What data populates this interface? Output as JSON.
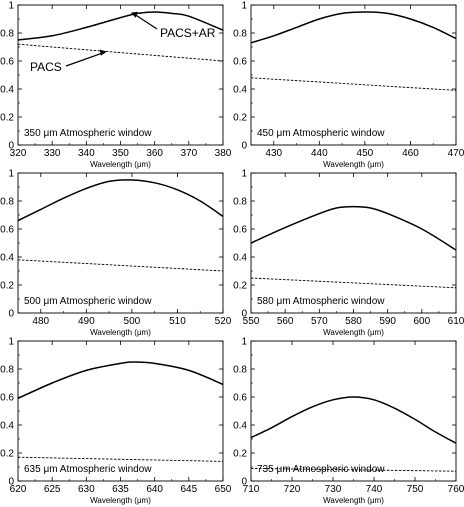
{
  "chart_data": [
    {
      "type": "line",
      "annotation": "350 μm Atmospheric window",
      "xlabel": "Wavelength (μm)",
      "ylabel": "",
      "xlim": [
        320,
        380
      ],
      "ylim": [
        0,
        1
      ],
      "x_ticks": [
        320,
        330,
        340,
        350,
        360,
        370,
        380
      ],
      "y_ticks": [
        0,
        0.2,
        0.4,
        0.6,
        0.8,
        1
      ],
      "series": [
        {
          "name": "PACS+AR",
          "style": "solid",
          "x": [
            320,
            330,
            340,
            350,
            355,
            360,
            365,
            370,
            380
          ],
          "y": [
            0.75,
            0.78,
            0.84,
            0.91,
            0.94,
            0.95,
            0.94,
            0.92,
            0.82
          ]
        },
        {
          "name": "PACS",
          "style": "dashed",
          "x": [
            320,
            380
          ],
          "y": [
            0.72,
            0.6
          ]
        }
      ],
      "labels": [
        "PACS+AR",
        "PACS"
      ]
    },
    {
      "type": "line",
      "annotation": "450 μm Atmospheric window",
      "xlabel": "Wavelength (μm)",
      "ylabel": "",
      "xlim": [
        425,
        470
      ],
      "ylim": [
        0,
        1
      ],
      "x_ticks": [
        430,
        440,
        450,
        460,
        470
      ],
      "y_ticks": [
        0,
        0.2,
        0.4,
        0.6,
        0.8,
        1
      ],
      "series": [
        {
          "style": "solid",
          "x": [
            425,
            430,
            435,
            440,
            445,
            450,
            455,
            460,
            465,
            470
          ],
          "y": [
            0.73,
            0.78,
            0.84,
            0.9,
            0.94,
            0.95,
            0.94,
            0.9,
            0.84,
            0.76
          ]
        },
        {
          "style": "dashed",
          "x": [
            425,
            470
          ],
          "y": [
            0.48,
            0.39
          ]
        }
      ]
    },
    {
      "type": "line",
      "annotation": "500 μm Atmospheric window",
      "xlabel": "Wavelength (μm)",
      "ylabel": "",
      "xlim": [
        475,
        520
      ],
      "ylim": [
        0,
        1
      ],
      "x_ticks": [
        480,
        490,
        500,
        510,
        520
      ],
      "y_ticks": [
        0,
        0.2,
        0.4,
        0.6,
        0.8,
        1
      ],
      "series": [
        {
          "style": "solid",
          "x": [
            475,
            480,
            485,
            490,
            495,
            500,
            505,
            510,
            515,
            520
          ],
          "y": [
            0.66,
            0.74,
            0.82,
            0.89,
            0.94,
            0.95,
            0.93,
            0.88,
            0.8,
            0.69
          ]
        },
        {
          "style": "dashed",
          "x": [
            475,
            520
          ],
          "y": [
            0.38,
            0.3
          ]
        }
      ]
    },
    {
      "type": "line",
      "annotation": "580 μm Atmospheric window",
      "xlabel": "Wavelength (μm)",
      "ylabel": "",
      "xlim": [
        550,
        610
      ],
      "ylim": [
        0,
        1
      ],
      "x_ticks": [
        550,
        560,
        570,
        580,
        590,
        600,
        610
      ],
      "y_ticks": [
        0,
        0.2,
        0.4,
        0.6,
        0.8,
        1
      ],
      "series": [
        {
          "style": "solid",
          "x": [
            550,
            560,
            570,
            575,
            580,
            585,
            590,
            600,
            610
          ],
          "y": [
            0.5,
            0.61,
            0.71,
            0.75,
            0.76,
            0.75,
            0.71,
            0.6,
            0.45
          ]
        },
        {
          "style": "dashed",
          "x": [
            550,
            610
          ],
          "y": [
            0.25,
            0.18
          ]
        }
      ]
    },
    {
      "type": "line",
      "annotation": "635 μm Atmospheric window",
      "xlabel": "Wavelength (μm)",
      "ylabel": "",
      "xlim": [
        620,
        650
      ],
      "ylim": [
        0,
        1
      ],
      "x_ticks": [
        620,
        625,
        630,
        635,
        640,
        645,
        650
      ],
      "y_ticks": [
        0,
        0.2,
        0.4,
        0.6,
        0.8,
        1
      ],
      "series": [
        {
          "style": "solid",
          "x": [
            620,
            625,
            630,
            635,
            637,
            640,
            645,
            650
          ],
          "y": [
            0.59,
            0.7,
            0.79,
            0.84,
            0.85,
            0.84,
            0.79,
            0.69
          ]
        },
        {
          "style": "dashed",
          "x": [
            620,
            650
          ],
          "y": [
            0.17,
            0.14
          ]
        }
      ]
    },
    {
      "type": "line",
      "annotation": "735 μm Atmospheric window",
      "xlabel": "Wavelength (μm)",
      "ylabel": "",
      "xlim": [
        710,
        760
      ],
      "ylim": [
        0,
        1
      ],
      "x_ticks": [
        710,
        720,
        730,
        740,
        750,
        760
      ],
      "y_ticks": [
        0,
        0.2,
        0.4,
        0.6,
        0.8,
        1
      ],
      "series": [
        {
          "style": "solid",
          "x": [
            710,
            715,
            720,
            725,
            730,
            735,
            740,
            745,
            750,
            755,
            760
          ],
          "y": [
            0.31,
            0.38,
            0.46,
            0.53,
            0.58,
            0.6,
            0.58,
            0.52,
            0.44,
            0.35,
            0.27
          ]
        },
        {
          "style": "dashed",
          "x": [
            710,
            760
          ],
          "y": [
            0.09,
            0.07
          ]
        }
      ]
    }
  ]
}
